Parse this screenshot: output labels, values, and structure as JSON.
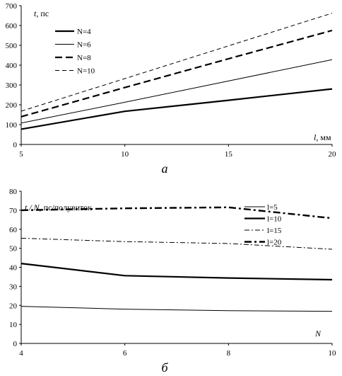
{
  "chart_data": [
    {
      "type": "line",
      "caption": "а",
      "ylabel_var": "t",
      "ylabel_unit": ", пс",
      "xlabel_var": "l",
      "xlabel_unit": ", мм",
      "xlim": [
        5,
        20
      ],
      "ylim": [
        0,
        700
      ],
      "x_ticks": [
        5,
        10,
        15,
        20
      ],
      "y_ticks": [
        0,
        100,
        200,
        300,
        400,
        500,
        600,
        700
      ],
      "grid": false,
      "legend_position": "top-left",
      "series": [
        {
          "name": "N=4",
          "style": "solid-thick",
          "x": [
            5,
            10,
            15,
            20
          ],
          "y": [
            77,
            167,
            223,
            280
          ]
        },
        {
          "name": "N=6",
          "style": "solid-thin",
          "x": [
            5,
            10,
            15,
            20
          ],
          "y": [
            108,
            213,
            320,
            428
          ]
        },
        {
          "name": "N=8",
          "style": "dash-thick",
          "x": [
            5,
            10,
            15,
            20
          ],
          "y": [
            140,
            287,
            432,
            575
          ]
        },
        {
          "name": "N=10",
          "style": "dash-thin",
          "x": [
            5,
            10,
            15,
            20
          ],
          "y": [
            168,
            332,
            497,
            662
          ]
        }
      ]
    },
    {
      "type": "line",
      "caption": "б",
      "ylabel_var": "t / N",
      "ylabel_unit": ", пс/полувиток",
      "xlabel_var": "N",
      "xlabel_unit": "",
      "xlim": [
        4,
        10
      ],
      "ylim": [
        0,
        80
      ],
      "x_ticks": [
        4,
        6,
        8,
        10
      ],
      "y_ticks": [
        0,
        10,
        20,
        30,
        40,
        50,
        60,
        70,
        80
      ],
      "grid": false,
      "legend_position": "top-right",
      "series": [
        {
          "name": "l=5",
          "style": "solid-thin",
          "x": [
            4,
            6,
            8,
            10
          ],
          "y": [
            19.5,
            18,
            17.2,
            16.9
          ]
        },
        {
          "name": "l=10",
          "style": "solid-thick",
          "x": [
            4,
            6,
            8,
            10
          ],
          "y": [
            42,
            35.6,
            34.4,
            33.5
          ]
        },
        {
          "name": "l=15",
          "style": "dashdot-thin",
          "x": [
            4,
            6,
            8,
            10
          ],
          "y": [
            55.3,
            53.5,
            52.5,
            49.5
          ]
        },
        {
          "name": "l=20",
          "style": "dashdot-thick",
          "x": [
            4,
            6,
            8,
            10
          ],
          "y": [
            70,
            71,
            71.5,
            65.8
          ]
        }
      ]
    }
  ]
}
